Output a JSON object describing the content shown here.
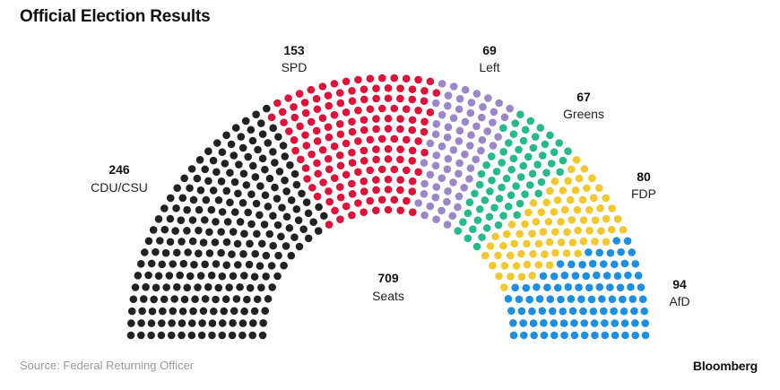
{
  "title": "Official Election Results",
  "source": "Source: Federal Returning Officer",
  "brand": "Bloomberg",
  "total": {
    "value": "709",
    "label": "Seats"
  },
  "chart_data": {
    "type": "parliament",
    "total_seats": 709,
    "series": [
      {
        "name": "CDU/CSU",
        "value": 246,
        "color": "#222222"
      },
      {
        "name": "SPD",
        "value": 153,
        "color": "#e0113a"
      },
      {
        "name": "Left",
        "value": 69,
        "color": "#9a86c8"
      },
      {
        "name": "Greens",
        "value": 67,
        "color": "#26b98a"
      },
      {
        "name": "FDP",
        "value": 80,
        "color": "#f2c82e"
      },
      {
        "name": "AfD",
        "value": 94,
        "color": "#1c8fe3"
      }
    ]
  }
}
